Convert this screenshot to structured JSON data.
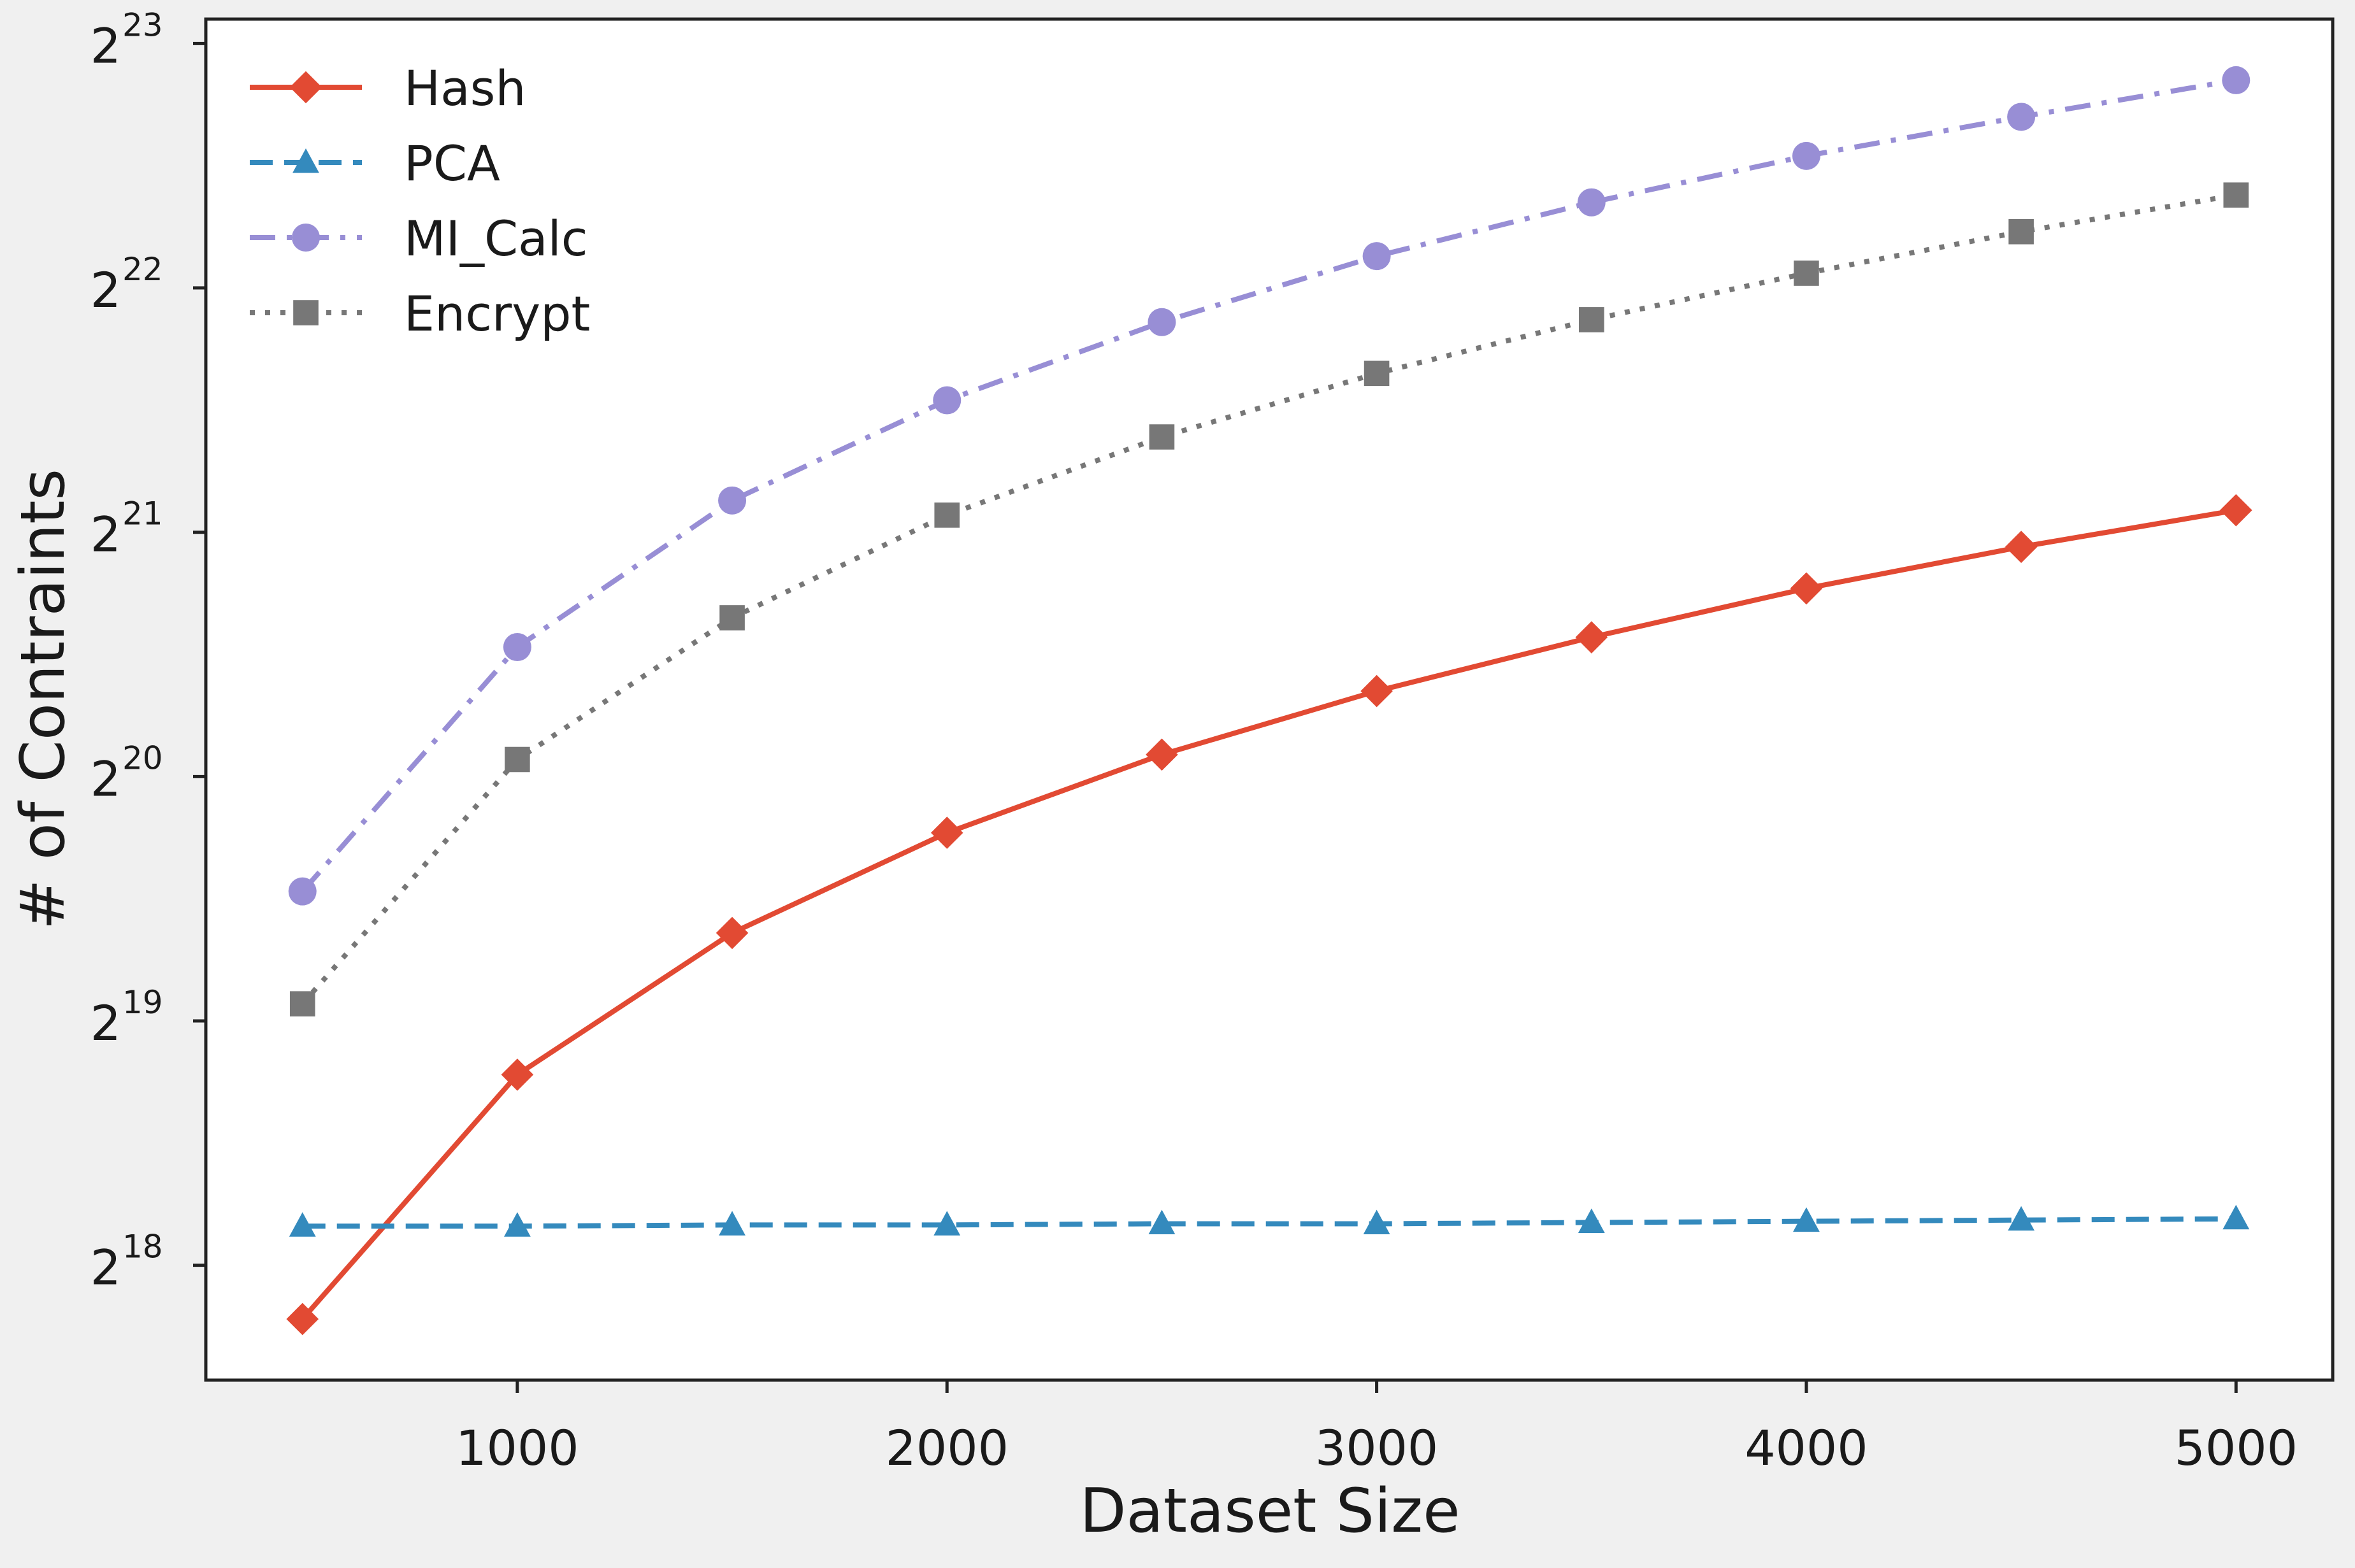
{
  "chart_data": {
    "type": "line",
    "xlabel": "Dataset Size",
    "ylabel": "# of Contraints",
    "y_scale": "log2",
    "x_ticks": [
      1000,
      2000,
      3000,
      4000,
      5000
    ],
    "y_tick_base": "2",
    "y_tick_exponents": [
      "18",
      "19",
      "20",
      "21",
      "22",
      "23"
    ],
    "xlim": [
      275,
      5225
    ],
    "ylim_exponent": [
      17.53,
      23.1
    ],
    "legend_position": "upper-left",
    "grid": false,
    "x": [
      500,
      1000,
      1500,
      2000,
      2500,
      3000,
      3500,
      4000,
      4500,
      5000
    ],
    "series": [
      {
        "name": "Hash",
        "color": "#e24a33",
        "marker": "diamond",
        "line_style": "solid",
        "log2_values": [
          17.78,
          18.78,
          19.36,
          19.77,
          20.09,
          20.35,
          20.57,
          20.77,
          20.94,
          21.09
        ]
      },
      {
        "name": "PCA",
        "color": "#348abd",
        "marker": "triangle",
        "line_style": "dashed",
        "log2_values": [
          18.16,
          18.16,
          18.165,
          18.165,
          18.17,
          18.17,
          18.175,
          18.18,
          18.185,
          18.19
        ]
      },
      {
        "name": "MI_Calc",
        "color": "#988ed5",
        "marker": "circle",
        "line_style": "dashdot",
        "log2_values": [
          19.53,
          20.53,
          21.13,
          21.54,
          21.86,
          22.13,
          22.35,
          22.54,
          22.7,
          22.85
        ]
      },
      {
        "name": "Encrypt",
        "color": "#777777",
        "marker": "square",
        "line_style": "dotted",
        "log2_values": [
          19.07,
          20.07,
          20.65,
          21.07,
          21.39,
          21.65,
          21.87,
          22.06,
          22.23,
          22.38
        ]
      }
    ]
  }
}
